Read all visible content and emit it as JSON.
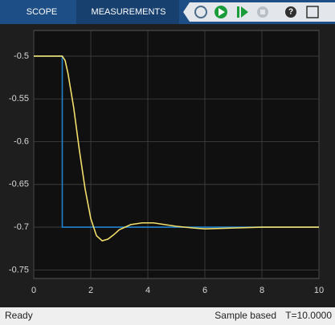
{
  "toolbar": {
    "tabs": [
      "SCOPE",
      "MEASUREMENTS"
    ]
  },
  "status_bar": {
    "status": "Ready",
    "mode": "Sample based",
    "time": "T=10.0000"
  },
  "chart_data": {
    "type": "line",
    "series": [
      {
        "color": "#1f82d0",
        "x": [
          0,
          1,
          1,
          10
        ],
        "values": [
          -0.5,
          -0.5,
          -0.7,
          -0.7
        ]
      },
      {
        "color": "#f2de6a",
        "x": [
          0,
          1,
          1.1,
          1.2,
          1.4,
          1.6,
          1.8,
          2,
          2.2,
          2.4,
          2.6,
          2.8,
          3,
          3.4,
          3.8,
          4.2,
          4.6,
          5,
          5.6,
          6,
          7,
          8,
          10
        ],
        "values": [
          -0.5,
          -0.5,
          -0.505,
          -0.52,
          -0.56,
          -0.61,
          -0.655,
          -0.69,
          -0.71,
          -0.716,
          -0.714,
          -0.709,
          -0.703,
          -0.697,
          -0.695,
          -0.695,
          -0.697,
          -0.699,
          -0.701,
          -0.702,
          -0.701,
          -0.7,
          -0.7
        ]
      }
    ],
    "xlim": [
      0,
      10
    ],
    "xticks": [
      0,
      2,
      4,
      6,
      8,
      10
    ],
    "ylim": [
      -0.76,
      -0.47
    ],
    "yticks": [
      -0.5,
      -0.55,
      -0.6,
      -0.65,
      -0.7,
      -0.75
    ],
    "grid": true
  }
}
